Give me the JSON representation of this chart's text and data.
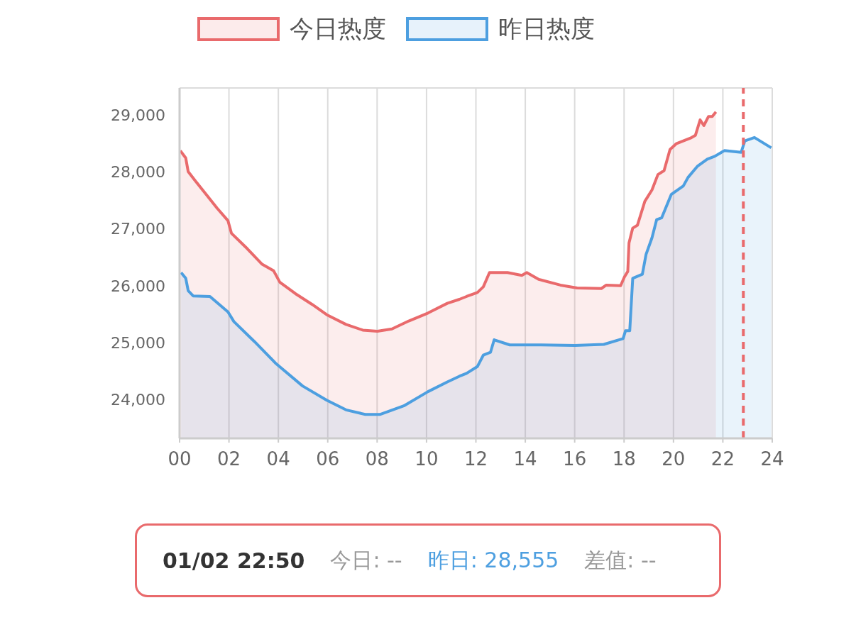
{
  "chart_data": {
    "type": "area",
    "series": [
      {
        "name": "今日热度",
        "color": "#e96a6c",
        "x": [
          0.03,
          0.25,
          0.35,
          0.69,
          1.08,
          1.52,
          1.96,
          2.1,
          2.74,
          3.33,
          3.81,
          4.06,
          4.69,
          5.37,
          5.96,
          6.74,
          7.42,
          8.01,
          8.6,
          9.28,
          10.06,
          10.84,
          11.33,
          11.62,
          12.06,
          12.3,
          12.55,
          13.28,
          13.86,
          14.06,
          14.55,
          15.42,
          16.1,
          17.08,
          17.28,
          17.86,
          18.01,
          18.15,
          18.2,
          18.35,
          18.54,
          18.84,
          19.13,
          19.37,
          19.62,
          19.86,
          20.11,
          20.69,
          20.89,
          21.08,
          21.23,
          21.42,
          21.57,
          21.72
        ],
        "values": [
          28370,
          28240,
          28000,
          27810,
          27600,
          27360,
          27140,
          26920,
          26650,
          26380,
          26260,
          26060,
          25860,
          25670,
          25490,
          25320,
          25220,
          25200,
          25240,
          25380,
          25520,
          25690,
          25760,
          25810,
          25880,
          25980,
          26230,
          26230,
          26180,
          26230,
          26110,
          26010,
          25960,
          25950,
          26010,
          26000,
          26150,
          26250,
          26750,
          27010,
          27060,
          27480,
          27680,
          27950,
          28020,
          28390,
          28490,
          28590,
          28640,
          28910,
          28810,
          28970,
          28970,
          29050
        ]
      },
      {
        "name": "昨日热度",
        "color": "#4d9fe0",
        "x": [
          0.06,
          0.25,
          0.35,
          0.55,
          1.23,
          1.96,
          2.2,
          3.03,
          3.91,
          4.98,
          5.96,
          6.74,
          7.52,
          8.11,
          9.08,
          10.06,
          10.84,
          11.33,
          11.62,
          12.06,
          12.3,
          12.59,
          12.74,
          13.37,
          14.55,
          16.01,
          17.18,
          17.96,
          18.06,
          18.23,
          18.35,
          18.74,
          18.89,
          19.13,
          19.32,
          19.52,
          19.91,
          20.4,
          20.59,
          20.98,
          21.37,
          21.67,
          22.06,
          22.74,
          22.89,
          23.28,
          23.62,
          23.96
        ],
        "values": [
          26230,
          26130,
          25910,
          25820,
          25810,
          25540,
          25370,
          25020,
          24630,
          24240,
          23990,
          23820,
          23740,
          23740,
          23890,
          24140,
          24310,
          24410,
          24460,
          24580,
          24780,
          24830,
          25050,
          24960,
          24960,
          24950,
          24970,
          25070,
          25210,
          25210,
          26130,
          26200,
          26550,
          26840,
          27160,
          27190,
          27600,
          27750,
          27900,
          28100,
          28220,
          28270,
          28370,
          28340,
          28540,
          28600,
          28510,
          28420
        ]
      }
    ],
    "xlim": [
      0,
      24
    ],
    "xticks": [
      {
        "value": 0,
        "label": "00"
      },
      {
        "value": 2,
        "label": "02"
      },
      {
        "value": 4,
        "label": "04"
      },
      {
        "value": 6,
        "label": "06"
      },
      {
        "value": 8,
        "label": "08"
      },
      {
        "value": 10,
        "label": "10"
      },
      {
        "value": 12,
        "label": "12"
      },
      {
        "value": 14,
        "label": "14"
      },
      {
        "value": 16,
        "label": "16"
      },
      {
        "value": 18,
        "label": "18"
      },
      {
        "value": 20,
        "label": "20"
      },
      {
        "value": 22,
        "label": "22"
      },
      {
        "value": 24,
        "label": "24"
      }
    ],
    "ylim": [
      23320,
      29470
    ],
    "yticks": [
      {
        "value": 24000,
        "label": "24,000"
      },
      {
        "value": 25000,
        "label": "25,000"
      },
      {
        "value": 26000,
        "label": "26,000"
      },
      {
        "value": 27000,
        "label": "27,000"
      },
      {
        "value": 28000,
        "label": "28,000"
      },
      {
        "value": 29000,
        "label": "29,000"
      }
    ],
    "grid": true,
    "legend": "top",
    "marker": "none",
    "ref_lines": [
      {
        "axis": "x",
        "value": 22.83,
        "color": "#e96a6c",
        "line_style": "dashed"
      }
    ],
    "annotations": [
      "01/02 22:50",
      "今日: --",
      "昨日: 28,555",
      "差值: --"
    ]
  }
}
